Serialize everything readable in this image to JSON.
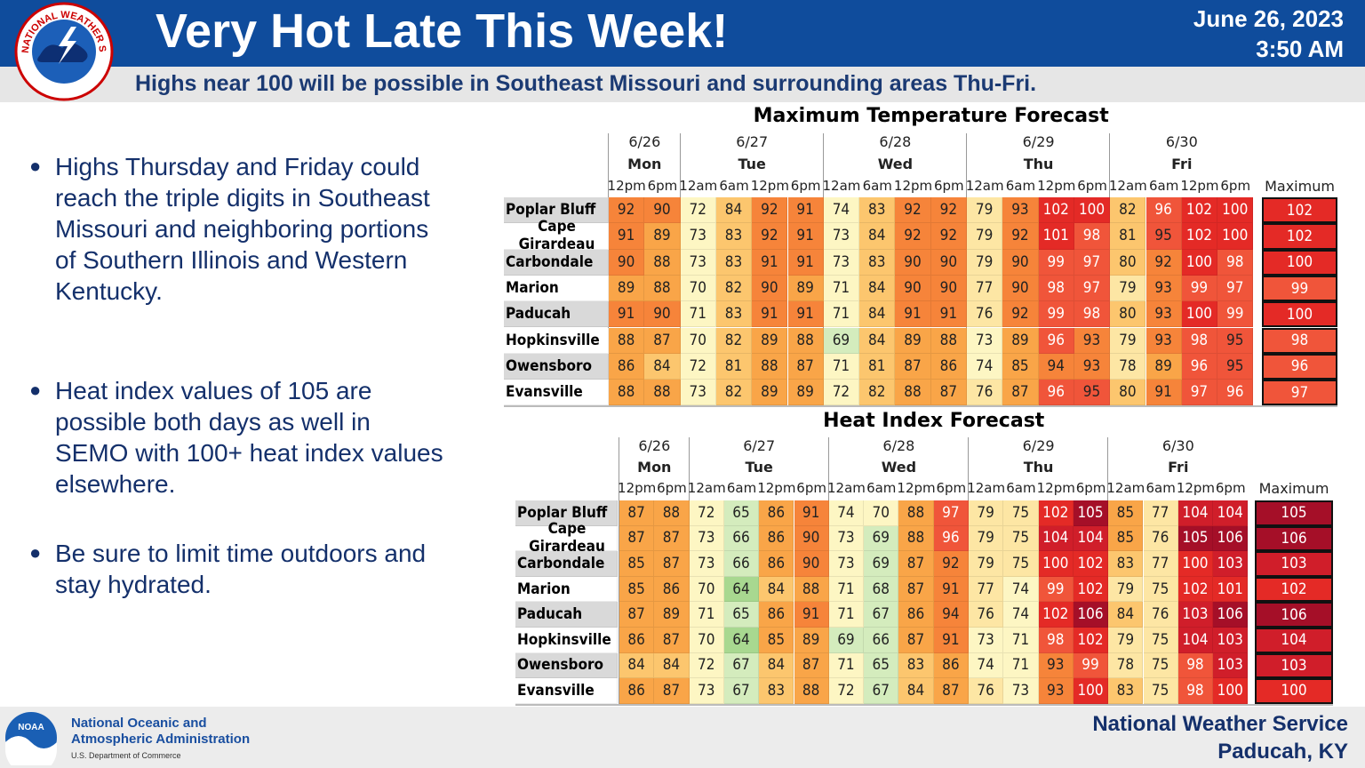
{
  "header": {
    "logo_text": "NATIONAL WEATHER SERVICE",
    "title": "Very Hot Late This Week!",
    "date": "June 26, 2023",
    "time": "3:50 AM",
    "subtitle": "Highs near 100 will be possible in Southeast Missouri and surrounding areas Thu-Fri."
  },
  "bullets": [
    "Highs Thursday and Friday could reach the triple digits in Southeast Missouri and neighboring portions of Southern Illinois and Western Kentucky.",
    "Heat index values of 105 are possible both days as well in SEMO with 100+ heat index values elsewhere.",
    "Be sure to limit time outdoors and stay hydrated."
  ],
  "tables": [
    {
      "title": "Maximum Temperature Forecast",
      "dates": [
        "6/26",
        "6/27",
        "6/28",
        "6/29",
        "6/30"
      ],
      "days": [
        "Mon",
        "Tue",
        "Wed",
        "Thu",
        "Fri"
      ],
      "times": [
        "12pm",
        "6pm",
        "12am",
        "6am",
        "12pm",
        "6pm",
        "12am",
        "6am",
        "12pm",
        "6pm",
        "12am",
        "6am",
        "12pm",
        "6pm",
        "12am",
        "6am",
        "12pm",
        "6pm"
      ],
      "max_label": "Maximum",
      "rows": [
        {
          "name": "Poplar Bluff",
          "values": [
            92,
            90,
            72,
            84,
            92,
            91,
            74,
            83,
            92,
            92,
            79,
            93,
            102,
            100,
            82,
            96,
            102,
            100
          ],
          "max": 102
        },
        {
          "name": "Cape Girardeau",
          "values": [
            91,
            89,
            73,
            83,
            92,
            91,
            73,
            84,
            92,
            92,
            79,
            92,
            101,
            98,
            81,
            95,
            102,
            100
          ],
          "max": 102
        },
        {
          "name": "Carbondale",
          "values": [
            90,
            88,
            73,
            83,
            91,
            91,
            73,
            83,
            90,
            90,
            79,
            90,
            99,
            97,
            80,
            92,
            100,
            98
          ],
          "max": 100
        },
        {
          "name": "Marion",
          "values": [
            89,
            88,
            70,
            82,
            90,
            89,
            71,
            84,
            90,
            90,
            77,
            90,
            98,
            97,
            79,
            93,
            99,
            97
          ],
          "max": 99
        },
        {
          "name": "Paducah",
          "values": [
            91,
            90,
            71,
            83,
            91,
            91,
            71,
            84,
            91,
            91,
            76,
            92,
            99,
            98,
            80,
            93,
            100,
            99
          ],
          "max": 100
        },
        {
          "name": "Hopkinsville",
          "values": [
            88,
            87,
            70,
            82,
            89,
            88,
            69,
            84,
            89,
            88,
            73,
            89,
            96,
            93,
            79,
            93,
            98,
            95
          ],
          "max": 98
        },
        {
          "name": "Owensboro",
          "values": [
            86,
            84,
            72,
            81,
            88,
            87,
            71,
            81,
            87,
            86,
            74,
            85,
            94,
            93,
            78,
            89,
            96,
            95
          ],
          "max": 96
        },
        {
          "name": "Evansville",
          "values": [
            88,
            88,
            73,
            82,
            89,
            89,
            72,
            82,
            88,
            87,
            76,
            87,
            96,
            95,
            80,
            91,
            97,
            96
          ],
          "max": 97
        }
      ]
    },
    {
      "title": "Heat Index Forecast",
      "dates": [
        "6/26",
        "6/27",
        "6/28",
        "6/29",
        "6/30"
      ],
      "days": [
        "Mon",
        "Tue",
        "Wed",
        "Thu",
        "Fri"
      ],
      "times": [
        "12pm",
        "6pm",
        "12am",
        "6am",
        "12pm",
        "6pm",
        "12am",
        "6am",
        "12pm",
        "6pm",
        "12am",
        "6am",
        "12pm",
        "6pm",
        "12am",
        "6am",
        "12pm",
        "6pm"
      ],
      "max_label": "Maximum",
      "rows": [
        {
          "name": "Poplar Bluff",
          "values": [
            87,
            88,
            72,
            65,
            86,
            91,
            74,
            70,
            88,
            97,
            79,
            75,
            102,
            105,
            85,
            77,
            104,
            104
          ],
          "max": 105
        },
        {
          "name": "Cape Girardeau",
          "values": [
            87,
            87,
            73,
            66,
            86,
            90,
            73,
            69,
            88,
            96,
            79,
            75,
            104,
            104,
            85,
            76,
            105,
            106
          ],
          "max": 106
        },
        {
          "name": "Carbondale",
          "values": [
            85,
            87,
            73,
            66,
            86,
            90,
            73,
            69,
            87,
            92,
            79,
            75,
            100,
            102,
            83,
            77,
            100,
            103
          ],
          "max": 103
        },
        {
          "name": "Marion",
          "values": [
            85,
            86,
            70,
            64,
            84,
            88,
            71,
            68,
            87,
            91,
            77,
            74,
            99,
            102,
            79,
            75,
            102,
            101
          ],
          "max": 102
        },
        {
          "name": "Paducah",
          "values": [
            87,
            89,
            71,
            65,
            86,
            91,
            71,
            67,
            86,
            94,
            76,
            74,
            102,
            106,
            84,
            76,
            103,
            106
          ],
          "max": 106
        },
        {
          "name": "Hopkinsville",
          "values": [
            86,
            87,
            70,
            64,
            85,
            89,
            69,
            66,
            87,
            91,
            73,
            71,
            98,
            102,
            79,
            75,
            104,
            103
          ],
          "max": 104
        },
        {
          "name": "Owensboro",
          "values": [
            84,
            84,
            72,
            67,
            84,
            87,
            71,
            65,
            83,
            86,
            74,
            71,
            93,
            99,
            78,
            75,
            98,
            103
          ],
          "max": 103
        },
        {
          "name": "Evansville",
          "values": [
            86,
            87,
            73,
            67,
            83,
            88,
            72,
            67,
            84,
            87,
            76,
            73,
            93,
            100,
            83,
            75,
            98,
            100
          ],
          "max": 100
        }
      ]
    }
  ],
  "footer": {
    "noaa_logo": "NOAA",
    "org": [
      "National Oceanic and",
      "Atmospheric Administration",
      "U.S. Department of Commerce"
    ],
    "office": [
      "National Weather Service",
      "Paducah, KY"
    ]
  }
}
